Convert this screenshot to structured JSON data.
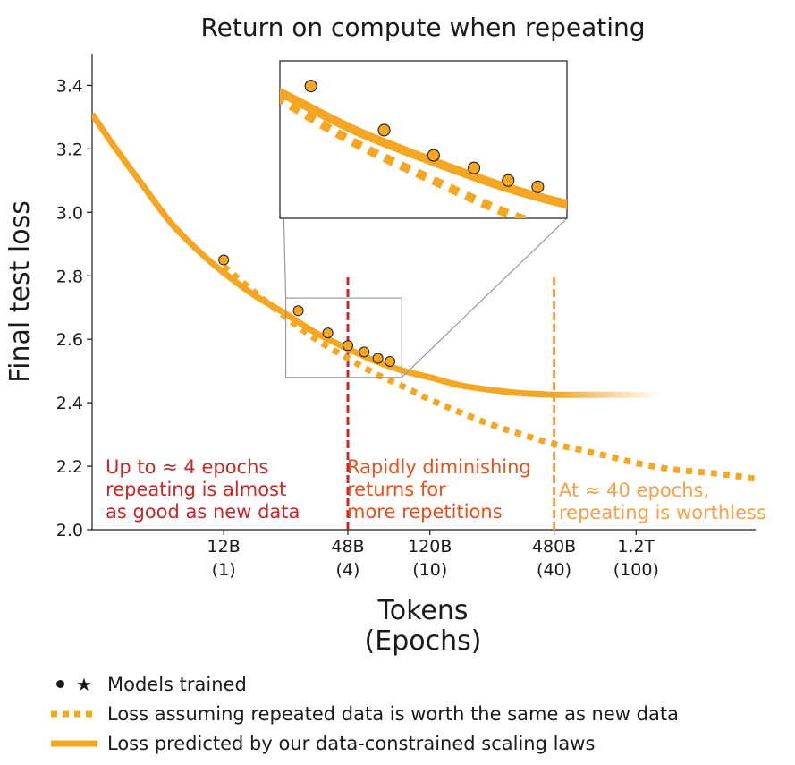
{
  "chart_data": {
    "type": "line",
    "title": "Return on compute when repeating",
    "ylabel": "Final test loss",
    "xlabel_line1": "Tokens",
    "xlabel_line2": "(Epochs)",
    "ylim": [
      2.0,
      3.5
    ],
    "yticks": [
      2.0,
      2.2,
      2.4,
      2.6,
      2.8,
      3.0,
      3.2,
      3.4
    ],
    "xscale": "log",
    "x_unit": "epochs",
    "xlim": [
      0.23,
      380
    ],
    "xticks": [
      {
        "x": 1,
        "label": "12B",
        "sublabel": "(1)"
      },
      {
        "x": 4,
        "label": "48B",
        "sublabel": "(4)"
      },
      {
        "x": 10,
        "label": "120B",
        "sublabel": "(10)"
      },
      {
        "x": 40,
        "label": "480B",
        "sublabel": "(40)"
      },
      {
        "x": 100,
        "label": "1.2T",
        "sublabel": "(100)"
      }
    ],
    "series": [
      {
        "name": "Loss predicted by our data-constrained scaling laws",
        "style": "solid",
        "color": "#F5A623",
        "x": [
          0.23,
          0.3,
          0.4,
          0.55,
          0.75,
          1,
          1.4,
          2,
          2.8,
          4,
          5.5,
          7.5,
          10,
          14,
          20,
          28,
          40,
          55,
          75,
          100,
          130
        ],
        "y": [
          3.31,
          3.2,
          3.09,
          2.97,
          2.88,
          2.81,
          2.74,
          2.68,
          2.62,
          2.57,
          2.53,
          2.5,
          2.48,
          2.455,
          2.44,
          2.43,
          2.425,
          2.422,
          2.42,
          2.42,
          2.42
        ]
      },
      {
        "name": "Loss assuming repeated data is worth the same as new data",
        "style": "dotted",
        "color": "#F5A623",
        "x": [
          1,
          1.4,
          2,
          2.8,
          4,
          5.5,
          7.5,
          10,
          14,
          20,
          28,
          40,
          55,
          75,
          100,
          150,
          220,
          300,
          380
        ],
        "y": [
          2.83,
          2.75,
          2.67,
          2.6,
          2.54,
          2.49,
          2.45,
          2.41,
          2.37,
          2.33,
          2.3,
          2.27,
          2.25,
          2.23,
          2.21,
          2.19,
          2.18,
          2.17,
          2.16
        ]
      }
    ],
    "points": {
      "name": "Models trained",
      "x": [
        1,
        2.3,
        3.2,
        4,
        4.8,
        5.6,
        6.4
      ],
      "y": [
        2.85,
        2.69,
        2.62,
        2.58,
        2.56,
        2.54,
        2.53
      ]
    },
    "vlines": [
      {
        "x": 4,
        "color": "#C62828",
        "ymax": 2.8
      },
      {
        "x": 40,
        "color": "#F5A04A",
        "ymax": 2.8
      }
    ],
    "inset_range": {
      "x": [
        2,
        7.3
      ],
      "y": [
        2.48,
        2.73
      ]
    },
    "annotations": [
      {
        "lines": [
          "Up to ≈ 4 epochs",
          "repeating is almost",
          "as good as new data"
        ],
        "color": "#C62828"
      },
      {
        "lines": [
          "Rapidly diminishing",
          "returns for",
          "more repetitions"
        ],
        "color": "#E8501E"
      },
      {
        "lines": [
          "At ≈ 40 epochs,",
          "repeating is worthless"
        ],
        "color": "#F5A04A"
      }
    ],
    "legend": [
      {
        "label": "Models trained",
        "symbol": "markers"
      },
      {
        "label": "Loss assuming repeated data is worth the same as new data",
        "symbol": "dotted"
      },
      {
        "label": "Loss predicted by our data-constrained scaling laws",
        "symbol": "solid"
      }
    ]
  }
}
